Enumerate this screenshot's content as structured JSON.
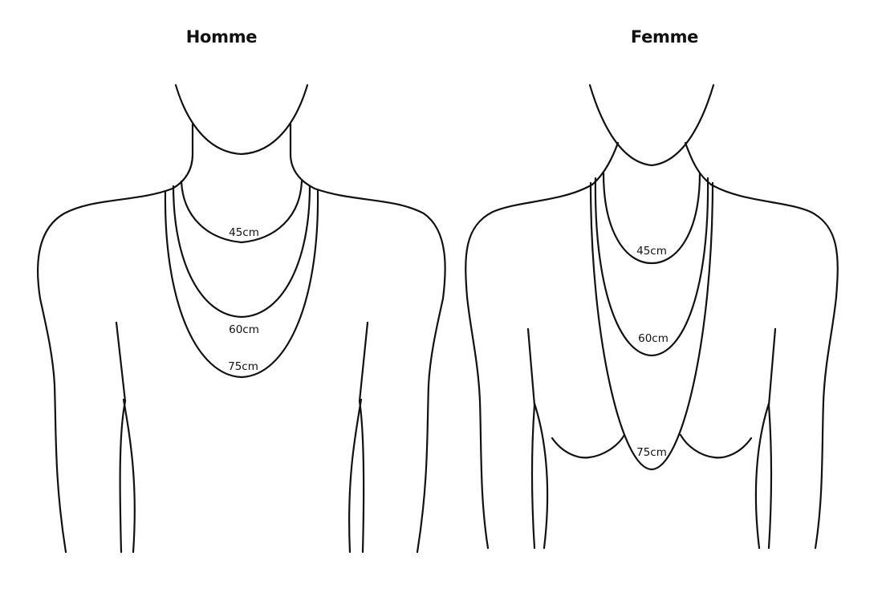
{
  "homme": {
    "title": "Homme",
    "lengths": [
      "45cm",
      "60cm",
      "75cm"
    ]
  },
  "femme": {
    "title": "Femme",
    "lengths": [
      "45cm",
      "60cm",
      "75cm"
    ]
  },
  "line_color": "#111111",
  "background_color": "#ffffff"
}
